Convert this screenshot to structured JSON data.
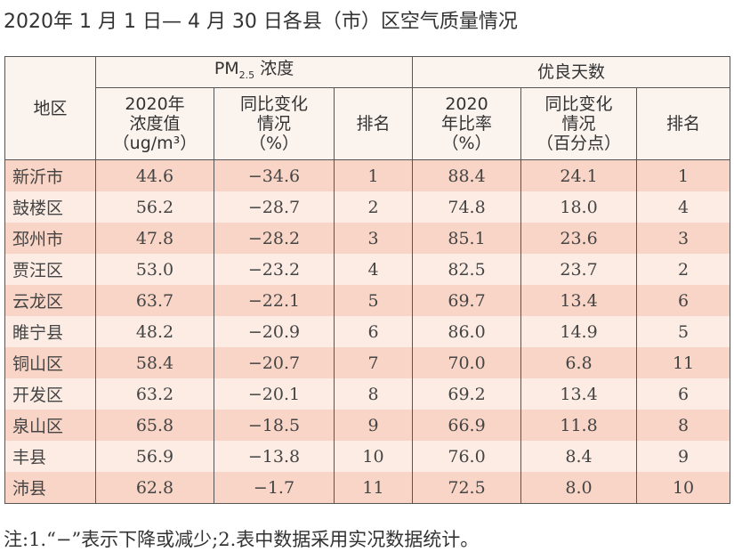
{
  "title": "2020年 1 月 1 日— 4 月 30 日各县（市）区空气质量情况",
  "headers": {
    "area": "地区",
    "pm_group": "PM",
    "pm_sub": "2.5",
    "pm_suffix": " 浓度",
    "good_group": "优良天数",
    "cols": [
      [
        "2020年",
        "浓度值",
        "（ug/m³）"
      ],
      [
        "同比变化",
        "情况",
        "（%）"
      ],
      [
        "排名"
      ],
      [
        "2020",
        "年比率",
        "（%）"
      ],
      [
        "同比变化",
        "情况",
        "（百分点）"
      ],
      [
        "排名"
      ]
    ]
  },
  "rows": [
    [
      "新沂市",
      "44.6",
      "−34.6",
      "1",
      "88.4",
      "24.1",
      "1"
    ],
    [
      "鼓楼区",
      "56.2",
      "−28.7",
      "2",
      "74.8",
      "18.0",
      "4"
    ],
    [
      "邳州市",
      "47.8",
      "−28.2",
      "3",
      "85.1",
      "23.6",
      "3"
    ],
    [
      "贾汪区",
      "53.0",
      "−23.2",
      "4",
      "82.5",
      "23.7",
      "2"
    ],
    [
      "云龙区",
      "63.7",
      "−22.1",
      "5",
      "69.7",
      "13.4",
      "6"
    ],
    [
      "睢宁县",
      "48.2",
      "−20.9",
      "6",
      "86.0",
      "14.9",
      "5"
    ],
    [
      "铜山区",
      "58.4",
      "−20.7",
      "7",
      "70.0",
      "6.8",
      "11"
    ],
    [
      "开发区",
      "63.2",
      "−20.1",
      "8",
      "69.2",
      "13.4",
      "6"
    ],
    [
      "泉山区",
      "65.8",
      "−18.5",
      "9",
      "66.9",
      "11.8",
      "8"
    ],
    [
      "丰县",
      "56.9",
      "−13.8",
      "10",
      "76.0",
      "8.4",
      "9"
    ],
    [
      "沛县",
      "62.8",
      "−1.7",
      "11",
      "72.5",
      "8.0",
      "10"
    ]
  ],
  "note": "注:1.“−”表示下降或减少;2.表中数据采用实况数据统计。"
}
